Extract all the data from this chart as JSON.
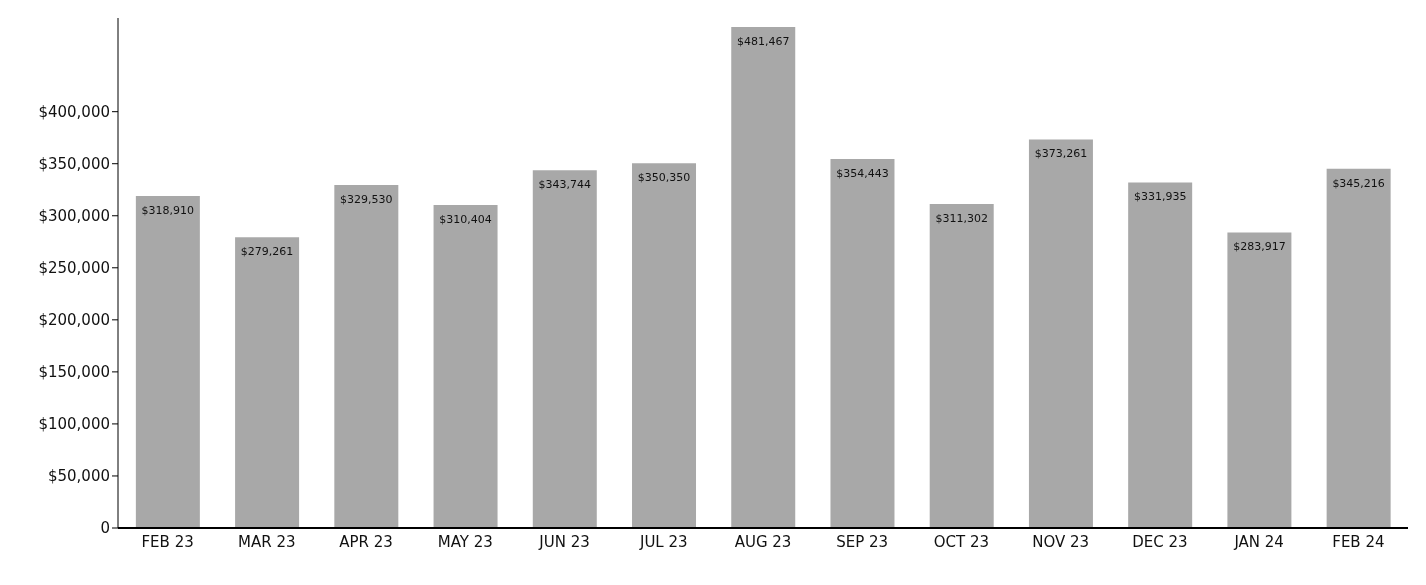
{
  "chart_data": {
    "type": "bar",
    "categories": [
      "FEB 23",
      "MAR 23",
      "APR 23",
      "MAY 23",
      "JUN 23",
      "JUL 23",
      "AUG 23",
      "SEP 23",
      "OCT 23",
      "NOV 23",
      "DEC 23",
      "JAN 24",
      "FEB 24"
    ],
    "values": [
      318910,
      279261,
      329530,
      310404,
      343744,
      350350,
      481467,
      354443,
      311302,
      373261,
      331935,
      283917,
      345216
    ],
    "value_labels": [
      "$318,910",
      "$279,261",
      "$329,530",
      "$310,404",
      "$343,744",
      "$350,350",
      "$481,467",
      "$354,443",
      "$311,302",
      "$373,261",
      "$331,935",
      "$283,917",
      "$345,216"
    ],
    "color": "#a8a8a8",
    "ylim": [
      0,
      490000
    ],
    "yticks": [
      0,
      {
        "value": 50000,
        "label": "$50,000"
      },
      {
        "value": 100000,
        "label": "$100,000"
      },
      {
        "value": 150000,
        "label": "$150,000"
      },
      {
        "value": 200000,
        "label": "$200,000"
      },
      {
        "value": 250000,
        "label": "$250,000"
      },
      {
        "value": 300000,
        "label": "$300,000"
      },
      {
        "value": 350000,
        "label": "$350,000"
      },
      {
        "value": 400000,
        "label": "$400,000"
      }
    ],
    "grid": false,
    "legend": false
  }
}
